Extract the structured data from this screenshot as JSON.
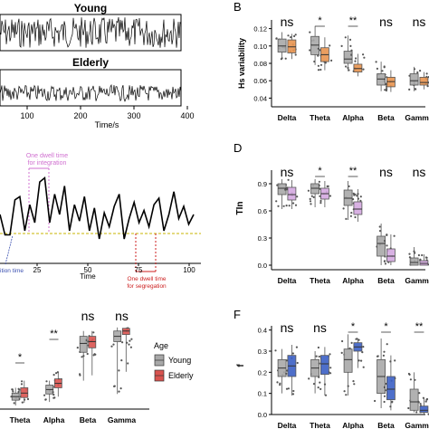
{
  "panels": {
    "top_left": {
      "young_label": "Young",
      "elderly_label": "Elderly",
      "xticks": [
        "100",
        "200",
        "300",
        "400"
      ],
      "xlabel": "Time/s"
    },
    "mid_left": {
      "xticks": [
        "25",
        "50",
        "75",
        "100"
      ],
      "xlabel": "Time",
      "integration_note": [
        "One dwell time",
        "for integration"
      ],
      "segregation_note": [
        "One dwell time",
        "for segregation"
      ],
      "transition_note": "ition time"
    },
    "bottom_left": {
      "categories": [
        "Theta",
        "Alpha",
        "Beta",
        "Gamma"
      ],
      "sig": [
        "*",
        "**",
        "ns",
        "ns"
      ],
      "legend_title": "Age",
      "legend": [
        "Young",
        "Elderly"
      ]
    },
    "B": {
      "letter": "B",
      "ylabel": "Hs variability",
      "yticks": [
        "0.04",
        "0.06",
        "0.08",
        "0.10",
        "0.12"
      ],
      "categories": [
        "Delta",
        "Theta",
        "Alpha",
        "Beta",
        "Gamma"
      ],
      "sig": [
        "ns",
        "*",
        "**",
        "ns",
        "ns"
      ]
    },
    "D": {
      "letter": "D",
      "ylabel": "TIn",
      "yticks": [
        "0.0",
        "0.3",
        "0.6",
        "0.9"
      ],
      "categories": [
        "Delta",
        "Theta",
        "Alpha",
        "Beta",
        "Gamma"
      ],
      "sig": [
        "ns",
        "*",
        "**",
        "ns",
        "ns"
      ]
    },
    "F": {
      "letter": "F",
      "ylabel": "f",
      "yticks": [
        "0.0",
        "0.1",
        "0.2",
        "0.3",
        "0.4"
      ],
      "categories": [
        "Delta",
        "Theta",
        "Alpha",
        "Beta",
        "Gamma"
      ],
      "sig": [
        "ns",
        "ns",
        "*",
        "*",
        "**"
      ]
    }
  },
  "colors": {
    "young": "#a8a8a8",
    "elderly": "#d9534f",
    "B_elderly": "#e8944f",
    "D_elderly": "#d4a8e0",
    "F_elderly": "#3b5fc4",
    "integration": "#d070d0",
    "segregation": "#cc1f1f",
    "transition": "#3a4fb0",
    "baseline": "#c8b400"
  },
  "chart_data": [
    {
      "panel": "B",
      "type": "box",
      "categories": [
        "Delta",
        "Theta",
        "Alpha",
        "Beta",
        "Gamma"
      ],
      "ylabel": "Hs variability",
      "ylim": [
        0.03,
        0.13
      ],
      "series": [
        {
          "name": "Young",
          "median": [
            0.1,
            0.101,
            0.085,
            0.062,
            0.06
          ],
          "q1": [
            0.093,
            0.09,
            0.08,
            0.055,
            0.055
          ],
          "q3": [
            0.108,
            0.111,
            0.094,
            0.068,
            0.068
          ],
          "min": [
            0.085,
            0.078,
            0.071,
            0.048,
            0.048
          ],
          "max": [
            0.116,
            0.123,
            0.112,
            0.082,
            0.076
          ]
        },
        {
          "name": "Elderly",
          "median": [
            0.099,
            0.09,
            0.074,
            0.059,
            0.058
          ],
          "q1": [
            0.092,
            0.082,
            0.07,
            0.053,
            0.055
          ],
          "q3": [
            0.107,
            0.098,
            0.079,
            0.064,
            0.064
          ],
          "min": [
            0.085,
            0.072,
            0.065,
            0.047,
            0.05
          ],
          "max": [
            0.114,
            0.11,
            0.091,
            0.072,
            0.07
          ]
        }
      ]
    },
    {
      "panel": "D",
      "type": "box",
      "categories": [
        "Delta",
        "Theta",
        "Alpha",
        "Beta",
        "Gamma"
      ],
      "ylabel": "TIn",
      "ylim": [
        -0.05,
        1.05
      ],
      "series": [
        {
          "name": "Young",
          "median": [
            0.85,
            0.85,
            0.74,
            0.24,
            0.03
          ],
          "q1": [
            0.78,
            0.79,
            0.66,
            0.1,
            0.0
          ],
          "q3": [
            0.9,
            0.9,
            0.83,
            0.32,
            0.08
          ],
          "min": [
            0.62,
            0.64,
            0.5,
            0.0,
            0.0
          ],
          "max": [
            0.95,
            0.95,
            0.93,
            0.46,
            0.2
          ]
        },
        {
          "name": "Elderly",
          "median": [
            0.78,
            0.79,
            0.62,
            0.1,
            0.02
          ],
          "q1": [
            0.72,
            0.73,
            0.56,
            0.04,
            0.0
          ],
          "q3": [
            0.86,
            0.85,
            0.7,
            0.18,
            0.05
          ],
          "min": [
            0.62,
            0.64,
            0.48,
            0.0,
            0.0
          ],
          "max": [
            0.94,
            0.93,
            0.84,
            0.34,
            0.12
          ]
        }
      ]
    },
    {
      "panel": "F",
      "type": "box",
      "categories": [
        "Delta",
        "Theta",
        "Alpha",
        "Beta",
        "Gamma"
      ],
      "ylabel": "f",
      "ylim": [
        0.0,
        0.42
      ],
      "series": [
        {
          "name": "Young",
          "median": [
            0.22,
            0.22,
            0.26,
            0.18,
            0.06
          ],
          "q1": [
            0.18,
            0.18,
            0.2,
            0.1,
            0.02
          ],
          "q3": [
            0.26,
            0.26,
            0.31,
            0.26,
            0.12
          ],
          "min": [
            0.1,
            0.1,
            0.09,
            0.03,
            0.01
          ],
          "max": [
            0.31,
            0.3,
            0.38,
            0.36,
            0.2
          ]
        },
        {
          "name": "Elderly",
          "median": [
            0.23,
            0.24,
            0.32,
            0.12,
            0.02
          ],
          "q1": [
            0.18,
            0.19,
            0.3,
            0.07,
            0.01
          ],
          "q3": [
            0.28,
            0.28,
            0.34,
            0.18,
            0.04
          ],
          "min": [
            0.09,
            0.09,
            0.22,
            0.02,
            0.0
          ],
          "max": [
            0.33,
            0.32,
            0.36,
            0.28,
            0.08
          ]
        }
      ]
    },
    {
      "panel": "bottom_left",
      "type": "box",
      "categories": [
        "Theta",
        "Alpha",
        "Beta",
        "Gamma"
      ],
      "legend": [
        "Young",
        "Elderly"
      ],
      "series": [
        {
          "name": "Young",
          "median": [
            0.12,
            0.2,
            0.72,
            0.8
          ],
          "q1": [
            0.08,
            0.15,
            0.62,
            0.74
          ],
          "q3": [
            0.16,
            0.25,
            0.8,
            0.86
          ],
          "min": [
            0.02,
            0.06,
            0.3,
            0.15
          ],
          "max": [
            0.22,
            0.3,
            0.86,
            0.9
          ]
        },
        {
          "name": "Elderly",
          "median": [
            0.16,
            0.27,
            0.74,
            0.86
          ],
          "q1": [
            0.11,
            0.22,
            0.67,
            0.82
          ],
          "q3": [
            0.22,
            0.32,
            0.8,
            0.89
          ],
          "min": [
            0.05,
            0.12,
            0.36,
            0.4
          ],
          "max": [
            0.3,
            0.4,
            0.86,
            0.9
          ]
        }
      ]
    },
    {
      "panel": "mid_left",
      "type": "line",
      "xlabel": "Time",
      "xlim": [
        0,
        105
      ],
      "y": [
        0.5,
        0.25,
        0.25,
        0.68,
        0.72,
        0.3,
        0.62,
        0.4,
        0.9,
        0.95,
        0.4,
        0.75,
        0.5,
        0.85,
        0.3,
        0.62,
        0.42,
        0.72,
        0.3,
        0.58,
        0.2,
        0.52,
        0.35,
        0.6,
        0.75,
        0.2,
        0.45,
        0.65,
        0.4,
        0.55,
        0.35,
        0.62,
        0.7,
        0.3,
        0.5,
        0.78,
        0.45,
        0.6,
        0.38,
        0.5
      ]
    }
  ]
}
